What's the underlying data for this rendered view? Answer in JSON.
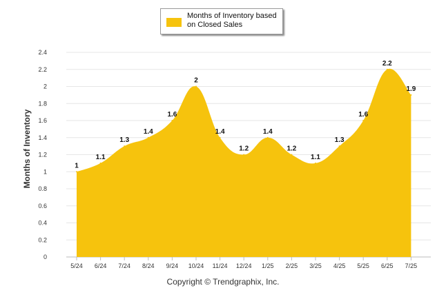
{
  "colors": {
    "area": "#f6c30d",
    "grid": "#e6e6e6",
    "axis": "#bbbbbb"
  },
  "legend": {
    "label": "Months of Inventory based on Closed Sales"
  },
  "copyright": "Copyright © Trendgraphix, Inc.",
  "chart_data": {
    "type": "area",
    "ylabel": "Months of Inventory",
    "ylim": [
      0,
      2.4
    ],
    "yticks": [
      0,
      0.2,
      0.4,
      0.6,
      0.8,
      1,
      1.2,
      1.4,
      1.6,
      1.8,
      2,
      2.2,
      2.4
    ],
    "grid": true,
    "legend_position": "top-center",
    "categories": [
      "5/24",
      "6/24",
      "7/24",
      "8/24",
      "9/24",
      "10/24",
      "11/24",
      "12/24",
      "1/25",
      "2/25",
      "3/25",
      "4/25",
      "5/25",
      "6/25",
      "7/25"
    ],
    "series": [
      {
        "name": "Months of Inventory based on Closed Sales",
        "values": [
          1,
          1.1,
          1.3,
          1.4,
          1.6,
          2,
          1.4,
          1.2,
          1.4,
          1.2,
          1.1,
          1.3,
          1.6,
          2.2,
          1.9
        ]
      }
    ]
  }
}
